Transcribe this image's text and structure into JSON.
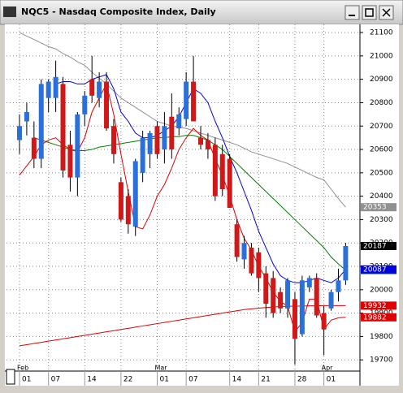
{
  "chart_data": {
    "type": "candlestick",
    "title": "NQC5 - Nasdaq Composite Index, Daily",
    "categories": [
      "01",
      null,
      null,
      null,
      "07",
      null,
      null,
      null,
      null,
      "14",
      null,
      null,
      null,
      null,
      "22",
      null,
      null,
      null,
      null,
      "01",
      null,
      null,
      null,
      "07",
      null,
      null,
      null,
      null,
      null,
      "14",
      null,
      null,
      null,
      "21",
      null,
      null,
      null,
      null,
      "28",
      null,
      null,
      null,
      "01",
      null,
      null,
      null
    ],
    "months": [
      "Feb",
      null,
      null,
      null,
      null,
      null,
      null,
      null,
      null,
      null,
      null,
      null,
      null,
      null,
      null,
      null,
      null,
      null,
      null,
      "Mar",
      null,
      null,
      null,
      null,
      null,
      null,
      null,
      null,
      null,
      null,
      null,
      null,
      null,
      null,
      null,
      null,
      null,
      null,
      null,
      null,
      null,
      null,
      "Apr",
      null,
      null,
      null
    ],
    "open": [
      20640,
      20720,
      20650,
      20560,
      20820,
      20820,
      20880,
      20620,
      20480,
      20750,
      20900,
      20820,
      20890,
      20700,
      20460,
      20400,
      20270,
      20500,
      20580,
      20700,
      20600,
      20740,
      20690,
      20730,
      20890,
      20650,
      20640,
      20620,
      20580,
      20560,
      20280,
      20130,
      20180,
      20160,
      20070,
      20050,
      19990,
      19920,
      19960,
      19810,
      20010,
      20050,
      19900,
      19920,
      19990,
      20040
    ],
    "high": [
      20750,
      20800,
      20720,
      20900,
      20900,
      20980,
      20910,
      20680,
      20760,
      20850,
      21000,
      20930,
      20930,
      20730,
      20480,
      20430,
      20560,
      20680,
      20680,
      20720,
      20760,
      20840,
      20780,
      20930,
      21000,
      20700,
      20670,
      20650,
      20620,
      20580,
      20300,
      20230,
      20200,
      20180,
      20100,
      20080,
      20010,
      20050,
      19990,
      20060,
      20060,
      20070,
      19930,
      20000,
      20090,
      20200
    ],
    "low": [
      20580,
      20660,
      20520,
      20520,
      20760,
      20760,
      20480,
      20420,
      20400,
      20700,
      20800,
      20780,
      20680,
      20540,
      20290,
      20240,
      20230,
      20460,
      20520,
      20560,
      20540,
      20560,
      20660,
      20700,
      20720,
      20600,
      20560,
      20380,
      20400,
      20350,
      20120,
      20090,
      20060,
      19990,
      19880,
      19880,
      19900,
      19880,
      19680,
      19800,
      19990,
      19880,
      19720,
      19910,
      19950,
      20020
    ],
    "close": [
      20700,
      20760,
      20560,
      20880,
      20890,
      20910,
      20510,
      20480,
      20750,
      20830,
      20830,
      20890,
      20690,
      20580,
      20300,
      20280,
      20550,
      20650,
      20670,
      20580,
      20700,
      20600,
      20750,
      20890,
      20720,
      20620,
      20600,
      20400,
      20430,
      20350,
      20140,
      20200,
      20070,
      20050,
      19940,
      19900,
      19920,
      20040,
      19790,
      20040,
      20050,
      19890,
      19830,
      19990,
      20040,
      20187
    ],
    "up_color": "#2a70d8",
    "down_color": "#d01818",
    "series": [
      {
        "color": "#909090",
        "values": [
          21100,
          21085,
          21070,
          21055,
          21040,
          21030,
          21010,
          20995,
          20975,
          20960,
          20930,
          20905,
          20880,
          20850,
          20820,
          20800,
          20780,
          20760,
          20740,
          20720,
          20710,
          20700,
          20695,
          20690,
          20680,
          20670,
          20660,
          20650,
          20640,
          20630,
          20620,
          20605,
          20590,
          20580,
          20570,
          20560,
          20550,
          20540,
          20525,
          20510,
          20495,
          20480,
          20470,
          20430,
          20390,
          20353
        ]
      },
      {
        "color": "#008000",
        "values": [
          null,
          null,
          20650,
          20640,
          20630,
          20620,
          20610,
          20600,
          20595,
          20595,
          20600,
          20610,
          20615,
          20620,
          20625,
          20630,
          20635,
          20640,
          20645,
          20650,
          20650,
          20655,
          20655,
          20660,
          20660,
          20650,
          20640,
          20620,
          20600,
          20570,
          20540,
          20510,
          20480,
          20450,
          20420,
          20390,
          20360,
          20330,
          20300,
          20270,
          20240,
          20210,
          20180,
          20140,
          20110,
          20084
        ]
      },
      {
        "color": "#0000e0",
        "values": [
          null,
          null,
          null,
          null,
          null,
          20880,
          20890,
          20890,
          20880,
          20880,
          20900,
          20910,
          20920,
          20860,
          20760,
          20720,
          20670,
          20650,
          20650,
          20660,
          20680,
          20700,
          20740,
          20800,
          20860,
          20840,
          20800,
          20720,
          20650,
          20570,
          20500,
          20420,
          20340,
          20250,
          20180,
          20110,
          20060,
          20040,
          20030,
          20030,
          20040,
          20050,
          20040,
          20030,
          20050,
          20087
        ]
      },
      {
        "color": "#e00000",
        "values": [
          20490,
          20530,
          20570,
          20620,
          20640,
          20650,
          20620,
          20600,
          20590,
          20650,
          20760,
          20820,
          20880,
          20750,
          20580,
          20420,
          20270,
          20260,
          20320,
          20400,
          20450,
          20520,
          20600,
          20650,
          20690,
          20660,
          20640,
          20560,
          20490,
          20400,
          20300,
          20220,
          20170,
          20100,
          20050,
          19990,
          19950,
          19930,
          19820,
          19860,
          19960,
          19960,
          19830,
          19870,
          19880,
          19882
        ]
      },
      {
        "color": "#e00000",
        "values": [
          19760,
          19765,
          19770,
          19775,
          19780,
          19785,
          19790,
          19795,
          19800,
          19805,
          19810,
          19815,
          19820,
          19825,
          19830,
          19835,
          19840,
          19845,
          19850,
          19855,
          19860,
          19865,
          19870,
          19875,
          19880,
          19885,
          19890,
          19895,
          19900,
          19905,
          19910,
          19915,
          19918,
          19921,
          19924,
          19926,
          19928,
          19929,
          19930,
          19930,
          19931,
          19931,
          19932,
          19932,
          19932,
          19932
        ]
      }
    ],
    "ylim": [
      19659,
      21135
    ],
    "yticks": [
      19700,
      19800,
      19900,
      20000,
      20100,
      20200,
      20300,
      20400,
      20500,
      20600,
      20700,
      20800,
      20900,
      21000,
      21100
    ],
    "grid": true
  }
}
